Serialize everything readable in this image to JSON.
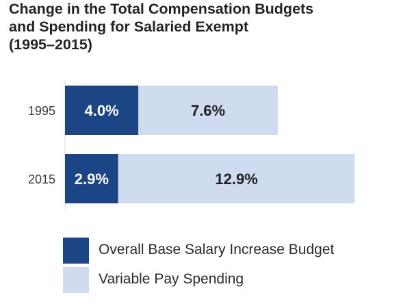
{
  "title_lines": [
    "Change in the Total Compensation Budgets",
    "and Spending for Salaried Exempt",
    "(1995–2015)"
  ],
  "colors": {
    "base_salary": "#1b4585",
    "variable_pay": "#cfdcf0",
    "base_label_text": "#ffffff",
    "variable_label_text": "#1f1f1f",
    "category_label": "#3a3a3a"
  },
  "chart_data": {
    "type": "bar",
    "orientation": "horizontal",
    "stacked": true,
    "categories": [
      "1995",
      "2015"
    ],
    "series": [
      {
        "name": "Overall Base Salary Increase Budget",
        "values": [
          4.0,
          2.9
        ],
        "labels": [
          "4.0%",
          "2.9%"
        ]
      },
      {
        "name": "Variable Pay Spending",
        "values": [
          7.6,
          12.9
        ],
        "labels": [
          "7.6%",
          "12.9%"
        ]
      }
    ],
    "xlim": [
      0,
      16.1
    ],
    "legend_position": "bottom-left",
    "grid": false,
    "title": "Change in the Total Compensation Budgets and Spending for Salaried Exempt (1995–2015)"
  },
  "legend": [
    {
      "label": "Overall Base Salary Increase Budget",
      "color": "#1b4585"
    },
    {
      "label": "Variable Pay Spending",
      "color": "#cfdcf0"
    }
  ]
}
